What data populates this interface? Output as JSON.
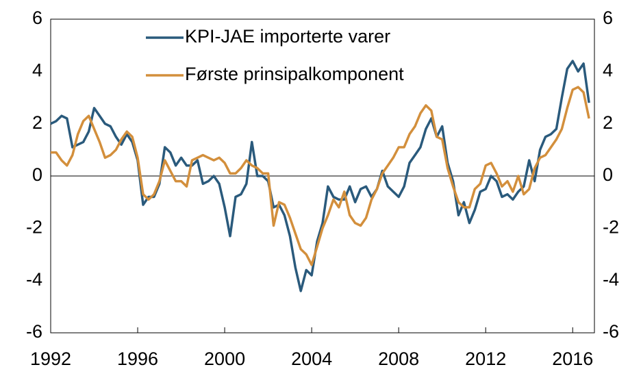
{
  "chart_data": {
    "type": "line",
    "x": [
      1992.0,
      1992.25,
      1992.5,
      1992.75,
      1993.0,
      1993.25,
      1993.5,
      1993.75,
      1994.0,
      1994.25,
      1994.5,
      1994.75,
      1995.0,
      1995.25,
      1995.5,
      1995.75,
      1996.0,
      1996.25,
      1996.5,
      1996.75,
      1997.0,
      1997.25,
      1997.5,
      1997.75,
      1998.0,
      1998.25,
      1998.5,
      1998.75,
      1999.0,
      1999.25,
      1999.5,
      1999.75,
      2000.0,
      2000.25,
      2000.5,
      2000.75,
      2001.0,
      2001.25,
      2001.5,
      2001.75,
      2002.0,
      2002.25,
      2002.5,
      2002.75,
      2003.0,
      2003.25,
      2003.5,
      2003.75,
      2004.0,
      2004.25,
      2004.5,
      2004.75,
      2005.0,
      2005.25,
      2005.5,
      2005.75,
      2006.0,
      2006.25,
      2006.5,
      2006.75,
      2007.0,
      2007.25,
      2007.5,
      2007.75,
      2008.0,
      2008.25,
      2008.5,
      2008.75,
      2009.0,
      2009.25,
      2009.5,
      2009.75,
      2010.0,
      2010.25,
      2010.5,
      2010.75,
      2011.0,
      2011.25,
      2011.5,
      2011.75,
      2012.0,
      2012.25,
      2012.5,
      2012.75,
      2013.0,
      2013.25,
      2013.5,
      2013.75,
      2014.0,
      2014.25,
      2014.5,
      2014.75,
      2015.0,
      2015.25,
      2015.5,
      2015.75,
      2016.0,
      2016.25,
      2016.5,
      2016.75
    ],
    "series": [
      {
        "name": "KPI-JAE importerte varer",
        "color": "#2a5a7c",
        "values": [
          2.0,
          2.1,
          2.3,
          2.2,
          1.1,
          1.2,
          1.3,
          1.7,
          2.6,
          2.3,
          2.0,
          1.9,
          1.5,
          1.2,
          1.6,
          1.3,
          0.6,
          -1.1,
          -0.8,
          -0.8,
          -0.3,
          1.1,
          0.9,
          0.4,
          0.7,
          0.4,
          0.4,
          0.6,
          -0.3,
          -0.2,
          0.0,
          -0.3,
          -1.2,
          -2.3,
          -0.8,
          -0.7,
          -0.3,
          1.3,
          0.0,
          0.0,
          -0.2,
          -1.2,
          -1.1,
          -1.5,
          -2.3,
          -3.5,
          -4.4,
          -3.6,
          -3.8,
          -2.5,
          -1.8,
          -0.4,
          -0.8,
          -0.9,
          -0.9,
          -0.4,
          -1.0,
          -0.5,
          -0.4,
          -0.8,
          -0.5,
          0.2,
          -0.4,
          -0.6,
          -0.8,
          -0.4,
          0.5,
          0.8,
          1.1,
          1.8,
          2.2,
          1.5,
          1.9,
          0.5,
          -0.2,
          -1.5,
          -1.0,
          -1.8,
          -1.3,
          -0.6,
          -0.5,
          0.0,
          -0.2,
          -0.8,
          -0.7,
          -0.9,
          -0.6,
          -0.4,
          0.6,
          -0.2,
          1.0,
          1.5,
          1.6,
          1.8,
          3.0,
          4.1,
          4.4,
          4.0,
          4.3,
          2.8
        ]
      },
      {
        "name": "Første prinsipalkomponent",
        "color": "#d38f3c",
        "values": [
          0.9,
          0.9,
          0.6,
          0.4,
          0.8,
          1.6,
          2.1,
          2.3,
          1.8,
          1.3,
          0.7,
          0.8,
          1.0,
          1.4,
          1.7,
          1.5,
          0.7,
          -0.7,
          -0.9,
          -0.7,
          -0.2,
          0.6,
          0.2,
          -0.2,
          -0.2,
          -0.4,
          0.6,
          0.7,
          0.8,
          0.7,
          0.6,
          0.7,
          0.5,
          0.1,
          0.1,
          0.3,
          0.6,
          0.4,
          0.3,
          0.1,
          0.1,
          -1.9,
          -1.0,
          -1.1,
          -1.6,
          -2.2,
          -2.8,
          -3.0,
          -3.4,
          -2.7,
          -2.0,
          -1.5,
          -0.9,
          -1.2,
          -0.6,
          -1.5,
          -1.8,
          -1.9,
          -1.6,
          -0.9,
          -0.5,
          0.1,
          0.4,
          0.7,
          1.1,
          1.1,
          1.6,
          1.9,
          2.4,
          2.7,
          2.5,
          1.5,
          1.4,
          0.3,
          -0.4,
          -1.0,
          -1.2,
          -1.2,
          -0.5,
          -0.3,
          0.4,
          0.5,
          0.1,
          -0.4,
          -0.2,
          -0.6,
          0.0,
          -0.7,
          -0.5,
          0.3,
          0.7,
          0.8,
          1.1,
          1.4,
          1.8,
          2.6,
          3.3,
          3.4,
          3.2,
          2.2
        ]
      }
    ],
    "xlim": [
      1992,
      2017
    ],
    "xticks": [
      1992,
      1996,
      2000,
      2004,
      2008,
      2012,
      2016
    ],
    "ylim": [
      -6,
      6
    ],
    "yticks": [
      -6,
      -4,
      -2,
      0,
      2,
      4,
      6
    ]
  }
}
